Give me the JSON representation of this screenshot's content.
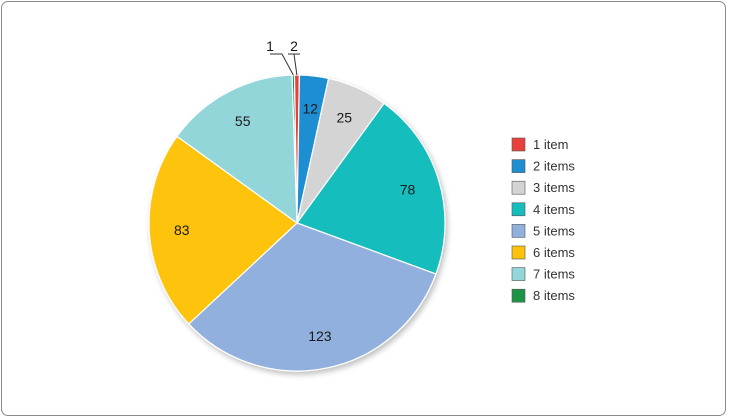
{
  "chart_data": {
    "type": "pie",
    "title": "",
    "categories": [
      "1 item",
      "2 items",
      "3 items",
      "4 items",
      "5 items",
      "6 items",
      "7 items",
      "8 items"
    ],
    "values": [
      2,
      12,
      25,
      78,
      123,
      83,
      55,
      1
    ],
    "colors": [
      "#e8403a",
      "#1f8ed1",
      "#d4d4d4",
      "#16bdbd",
      "#92b0de",
      "#fdc30b",
      "#93d6da",
      "#1c9246"
    ],
    "start_angle_deg": 0,
    "direction": "clockwise",
    "legend_position": "right"
  }
}
